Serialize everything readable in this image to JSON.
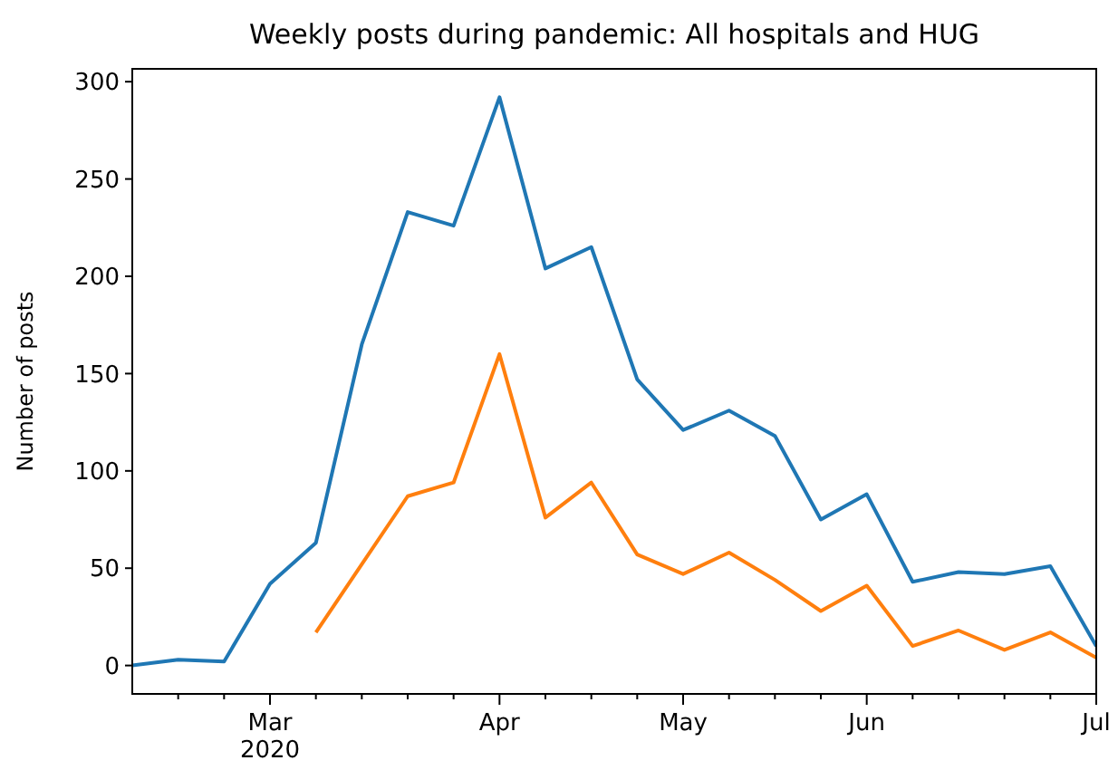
{
  "chart_data": {
    "type": "line",
    "title": "Weekly posts during pandemic: All hospitals and HUG",
    "ylabel": "Number of posts",
    "x": [
      "2020-02-10",
      "2020-02-17",
      "2020-02-24",
      "2020-03-02",
      "2020-03-09",
      "2020-03-16",
      "2020-03-23",
      "2020-03-30",
      "2020-04-06",
      "2020-04-13",
      "2020-04-20",
      "2020-04-27",
      "2020-05-04",
      "2020-05-11",
      "2020-05-18",
      "2020-05-25",
      "2020-06-01",
      "2020-06-08",
      "2020-06-15",
      "2020-06-22",
      "2020-06-29",
      "2020-07-06"
    ],
    "series": [
      {
        "color": "#1f77b4",
        "values": [
          0,
          3,
          2,
          42,
          63,
          165,
          233,
          226,
          292,
          204,
          215,
          147,
          121,
          131,
          118,
          75,
          88,
          43,
          48,
          47,
          51,
          10
        ]
      },
      {
        "color": "#ff7f0e",
        "values": [
          null,
          null,
          null,
          null,
          17,
          52,
          87,
          94,
          160,
          76,
          94,
          57,
          47,
          58,
          44,
          28,
          41,
          10,
          18,
          8,
          17,
          4
        ]
      }
    ],
    "xlim": [
      "2020-02-10",
      "2020-07-06"
    ],
    "xticks": [
      {
        "value": "2020-02-17",
        "label": null
      },
      {
        "value": "2020-02-24",
        "label": null
      },
      {
        "value": "2020-03-02",
        "label": "Mar\n2020"
      },
      {
        "value": "2020-03-09",
        "label": null
      },
      {
        "value": "2020-03-16",
        "label": null
      },
      {
        "value": "2020-03-23",
        "label": null
      },
      {
        "value": "2020-03-30",
        "label": null
      },
      {
        "value": "2020-04-06",
        "label": "Apr"
      },
      {
        "value": "2020-04-13",
        "label": null
      },
      {
        "value": "2020-04-20",
        "label": null
      },
      {
        "value": "2020-04-27",
        "label": null
      },
      {
        "value": "2020-05-04",
        "label": "May"
      },
      {
        "value": "2020-05-11",
        "label": null
      },
      {
        "value": "2020-05-18",
        "label": null
      },
      {
        "value": "2020-05-25",
        "label": null
      },
      {
        "value": "2020-06-01",
        "label": "Jun"
      },
      {
        "value": "2020-06-08",
        "label": null
      },
      {
        "value": "2020-06-15",
        "label": null
      },
      {
        "value": "2020-06-22",
        "label": null
      },
      {
        "value": "2020-06-29",
        "label": null
      },
      {
        "value": "2020-07-06",
        "label": "Jul"
      }
    ],
    "ylim": [
      -14.6,
      306.6
    ],
    "yticks": [
      0,
      50,
      100,
      150,
      200,
      250,
      300
    ],
    "grid": false
  }
}
